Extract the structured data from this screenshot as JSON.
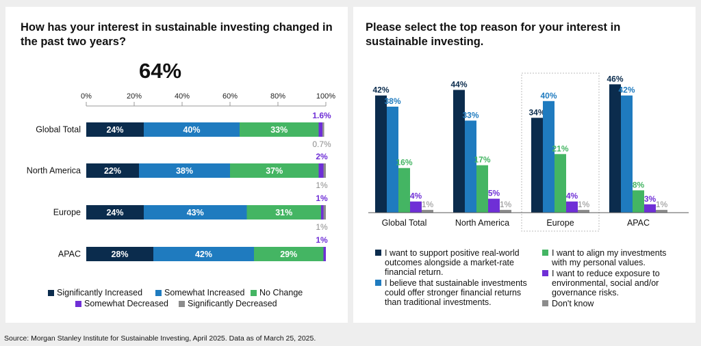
{
  "left": {
    "title": "How has your interest in sustainable investing changed in the past two years?",
    "headline": "64%"
  },
  "right": {
    "title": "Please select the top reason for your interest in sustainable investing."
  },
  "source": "Source: Morgan Stanley Institute for Sustainable Investing, April 2025. Data as of March 25, 2025.",
  "chart_data": [
    {
      "type": "bar",
      "orientation": "horizontal",
      "stacked": true,
      "title": "How has your interest in sustainable investing changed in the past two years?",
      "headline": "64%",
      "xlim": [
        0,
        100
      ],
      "xticks": [
        "0%",
        "20%",
        "40%",
        "60%",
        "80%",
        "100%"
      ],
      "categories": [
        "Global Total",
        "North America",
        "Europe",
        "APAC"
      ],
      "series": [
        {
          "name": "Significantly Increased",
          "color": "#0b2c4d",
          "values": [
            24,
            22,
            24,
            28
          ],
          "labels": [
            "24%",
            "22%",
            "24%",
            "28%"
          ]
        },
        {
          "name": "Somewhat Increased",
          "color": "#1f7bbf",
          "values": [
            40,
            38,
            43,
            42
          ],
          "labels": [
            "40%",
            "38%",
            "43%",
            "42%"
          ]
        },
        {
          "name": "No Change",
          "color": "#44b563",
          "values": [
            33,
            37,
            31,
            29
          ],
          "labels": [
            "33%",
            "37%",
            "31%",
            "29%"
          ]
        },
        {
          "name": "Somewhat Decreased",
          "color": "#6f2fd6",
          "values": [
            1.6,
            2,
            1,
            1
          ],
          "labels": [
            "1.6%",
            "2%",
            "1%",
            "1%"
          ]
        },
        {
          "name": "Significantly Decreased",
          "color": "#8c8c8c",
          "values": [
            0.7,
            1,
            1,
            0
          ],
          "labels": [
            "0.7%",
            "1%",
            "1%",
            ""
          ]
        }
      ],
      "legend_position": "bottom"
    },
    {
      "type": "bar",
      "orientation": "vertical",
      "stacked": false,
      "title": "Please select the top reason for your interest in sustainable investing.",
      "ylim": [
        0,
        50
      ],
      "categories": [
        "Global Total",
        "North America",
        "Europe",
        "APAC"
      ],
      "highlighted_category": "Europe",
      "series": [
        {
          "name": "I want to support positive real-world outcomes alongside a market-rate financial return.",
          "color": "#0b2c4d",
          "values": [
            42,
            44,
            34,
            46
          ]
        },
        {
          "name": "I believe that sustainable investments could offer stronger financial returns than traditional investments.",
          "color": "#1f7bbf",
          "values": [
            38,
            33,
            40,
            42
          ]
        },
        {
          "name": "I want to align my investments with my personal values.",
          "color": "#44b563",
          "values": [
            16,
            17,
            21,
            8
          ]
        },
        {
          "name": "I want to reduce exposure to environmental, social and/or governance risks.",
          "color": "#6f2fd6",
          "values": [
            4,
            5,
            4,
            3
          ]
        },
        {
          "name": "Don't know",
          "color": "#8c8c8c",
          "values": [
            1,
            1,
            1,
            1
          ]
        }
      ],
      "legend_position": "bottom"
    }
  ]
}
